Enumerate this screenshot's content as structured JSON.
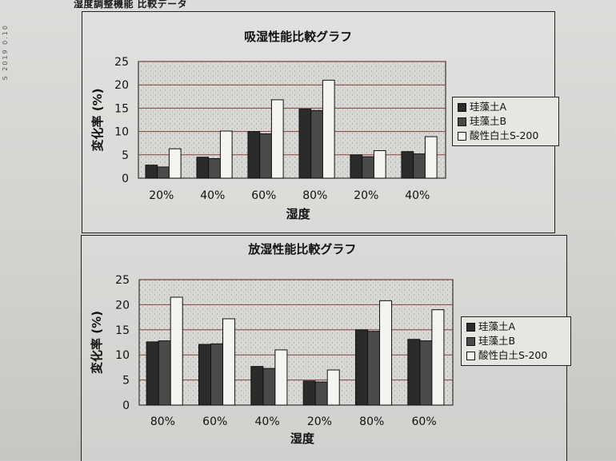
{
  "header": "湿度調整機能 比較データ",
  "margin_text": "S 2019 0.10",
  "colors": {
    "series_a": "#2b2b2b",
    "series_b": "#4a4a4a",
    "series_c": "#f4f4f1",
    "gridline": "#8a3a3a",
    "plot_bg": "#d8d8d5"
  },
  "chart_data": [
    {
      "type": "bar",
      "title": "吸湿性能比較グラフ",
      "xlabel": "湿度",
      "ylabel": "変化率 (%)",
      "categories": [
        "20%",
        "40%",
        "60%",
        "80%",
        "20%",
        "40%"
      ],
      "ylim": [
        0,
        25
      ],
      "yticks": [
        0,
        5,
        10,
        15,
        20,
        25
      ],
      "grid": true,
      "legend_position": "right",
      "series": [
        {
          "name": "珪藻土A",
          "values": [
            2.8,
            4.5,
            10.0,
            14.8,
            5.0,
            5.7
          ]
        },
        {
          "name": "珪藻土B",
          "values": [
            2.4,
            4.2,
            9.5,
            14.5,
            4.6,
            5.2
          ]
        },
        {
          "name": "酸性白土S-200",
          "values": [
            6.3,
            10.1,
            16.8,
            21.0,
            5.9,
            8.9
          ]
        }
      ]
    },
    {
      "type": "bar",
      "title": "放湿性能比較グラフ",
      "xlabel": "湿度",
      "ylabel": "変化率 (%)",
      "categories": [
        "80%",
        "60%",
        "40%",
        "20%",
        "80%",
        "60%"
      ],
      "ylim": [
        0,
        25
      ],
      "yticks": [
        0,
        5,
        10,
        15,
        20,
        25
      ],
      "grid": true,
      "legend_position": "right",
      "series": [
        {
          "name": "珪藻土A",
          "values": [
            12.6,
            12.1,
            7.7,
            4.8,
            15.0,
            13.1
          ]
        },
        {
          "name": "珪藻土B",
          "values": [
            12.8,
            12.2,
            7.3,
            4.6,
            14.7,
            12.8
          ]
        },
        {
          "name": "酸性白土S-200",
          "values": [
            21.5,
            17.2,
            11.0,
            7.0,
            20.8,
            19.0
          ]
        }
      ]
    }
  ]
}
